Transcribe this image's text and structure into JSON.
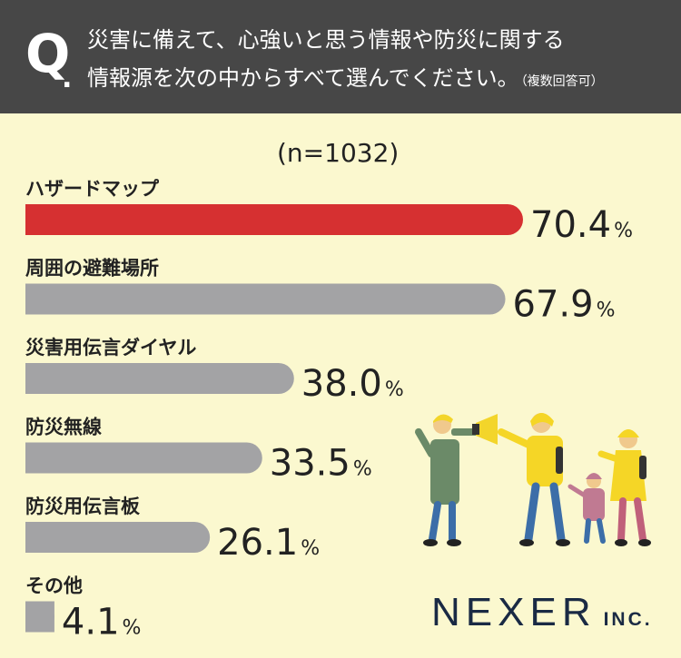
{
  "question": {
    "mark": "Q",
    "dot": ".",
    "line1": "災害に備えて、心強いと思う情報や防災に関する",
    "line2": "情報源を次の中からすべて選んでください。",
    "note": "（複数回答可）"
  },
  "chart_data": {
    "type": "bar",
    "orientation": "horizontal",
    "sample_size_label": "(n=1032)",
    "categories": [
      "ハザードマップ",
      "周囲の避難場所",
      "災害用伝言ダイヤル",
      "防災無線",
      "防災用伝言板",
      "その他"
    ],
    "values": [
      70.4,
      67.9,
      38.0,
      33.5,
      26.1,
      4.1
    ],
    "value_labels": [
      "70.4",
      "67.9",
      "38.0",
      "33.5",
      "26.1",
      "4.1"
    ],
    "unit": "%",
    "highlight_index": 0,
    "colors": {
      "highlight": "#d63031",
      "default": "#a3a3a5",
      "background": "#fbf8cf",
      "header": "#474747"
    }
  },
  "brand": {
    "main": "NEXER",
    "sub": "INC."
  }
}
